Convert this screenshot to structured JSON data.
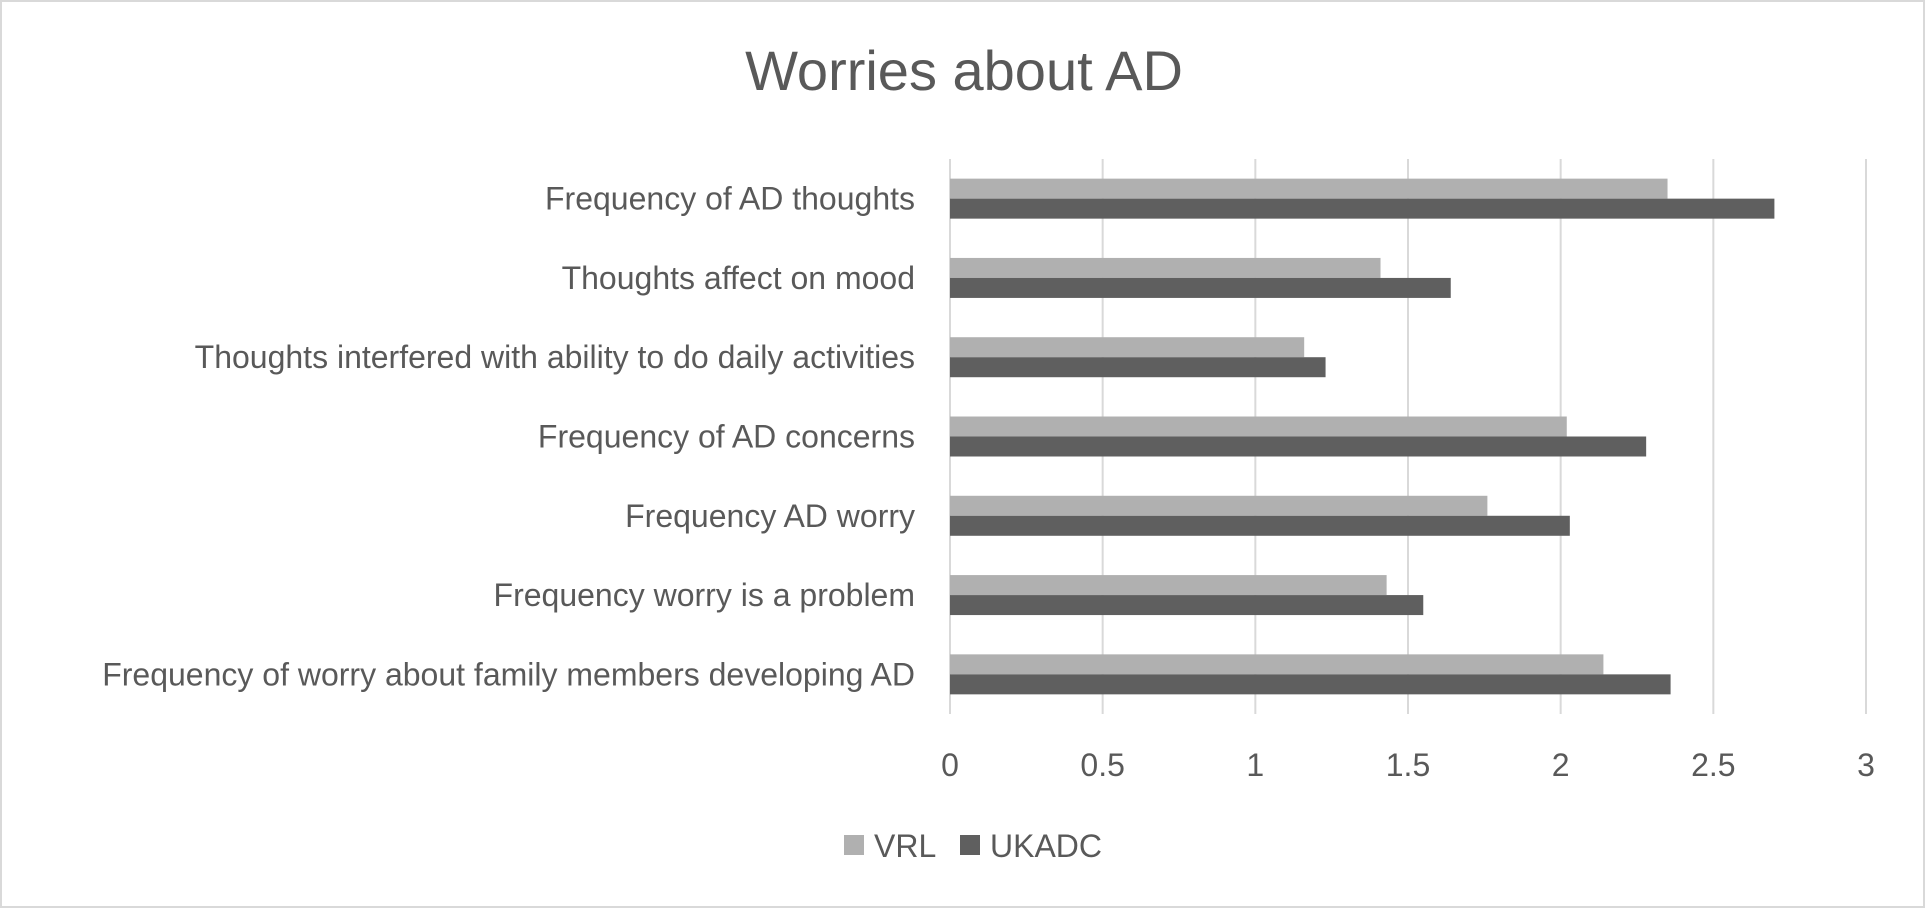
{
  "chart_data": {
    "type": "bar",
    "orientation": "horizontal",
    "title": "Worries about AD",
    "xlabel": "",
    "ylabel": "",
    "categories": [
      "Frequency of AD thoughts",
      "Thoughts affect on mood",
      "Thoughts interfered with ability to do daily activities",
      "Frequency of AD concerns",
      "Frequency AD worry",
      "Frequency worry is a problem",
      "Frequency of worry about family members developing AD"
    ],
    "series": [
      {
        "name": "VRL",
        "color": "#b0b0b0",
        "values": [
          2.35,
          1.41,
          1.16,
          2.02,
          1.76,
          1.43,
          2.14
        ]
      },
      {
        "name": "UKADC",
        "color": "#5f5f5f",
        "values": [
          2.7,
          1.64,
          1.23,
          2.28,
          2.03,
          1.55,
          2.36
        ]
      }
    ],
    "xlim": [
      0,
      3
    ],
    "xticks": [
      "0",
      "0.5",
      "1",
      "1.5",
      "2",
      "2.5",
      "3"
    ],
    "grid": true,
    "legend_position": "bottom"
  }
}
